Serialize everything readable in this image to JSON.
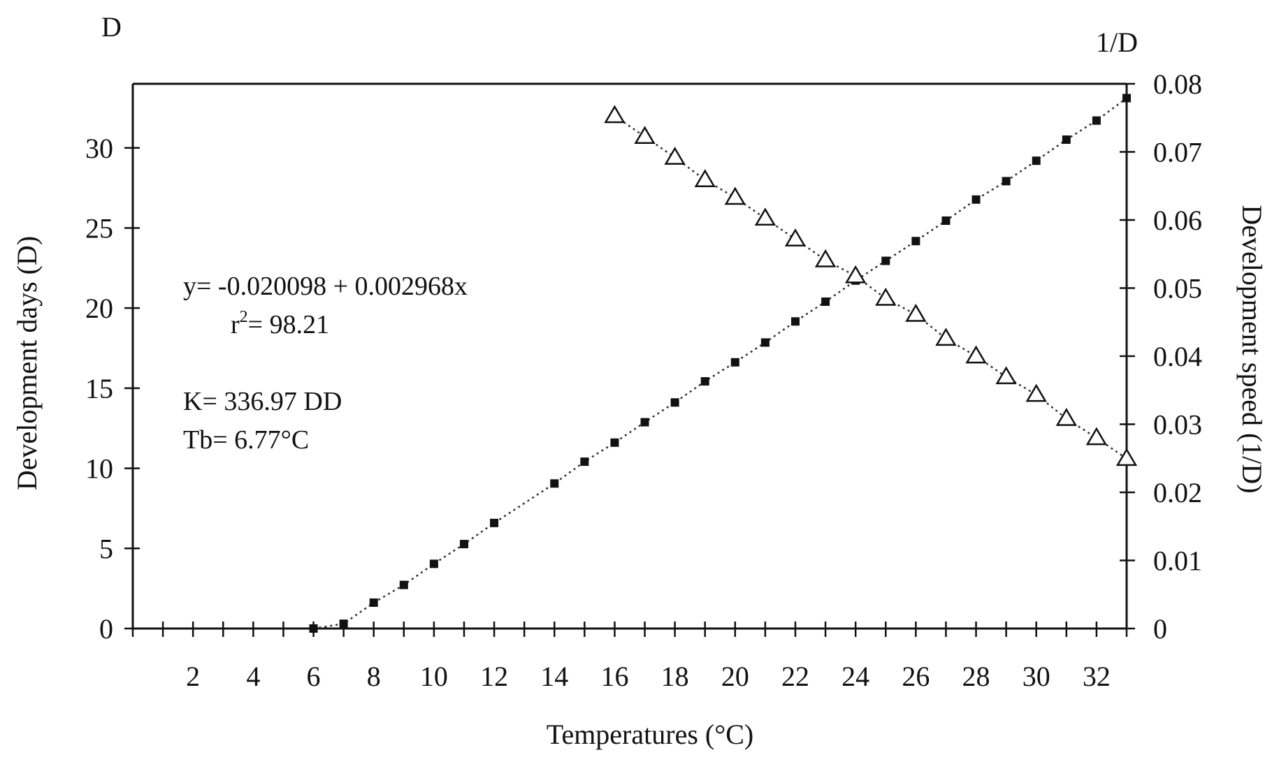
{
  "chart_data": {
    "type": "scatter",
    "title": "",
    "left_axis_symbol": "D",
    "right_axis_symbol": "1/D",
    "xlabel": "Temperatures (°C)",
    "ylabel_left": "Development days (D)",
    "ylabel_right": "Development speed (1/D)",
    "xlim": [
      0,
      33
    ],
    "ylim_left": [
      0,
      34
    ],
    "ylim_right": [
      0,
      0.08
    ],
    "x_tick_labels": [
      "2",
      "4",
      "6",
      "8",
      "10",
      "12",
      "14",
      "16",
      "18",
      "20",
      "22",
      "24",
      "26",
      "28",
      "30",
      "32"
    ],
    "y_left_tick_labels": [
      "0",
      "5",
      "10",
      "15",
      "20",
      "25",
      "30"
    ],
    "y_right_tick_labels": [
      "0",
      "0.01",
      "0.02",
      "0.03",
      "0.04",
      "0.05",
      "0.06",
      "0.07",
      "0.08"
    ],
    "grid": false,
    "series": [
      {
        "axis": "right",
        "marker": "square",
        "x": [
          6,
          7,
          8,
          9,
          10,
          11,
          12,
          14,
          15,
          16,
          17,
          18,
          19,
          20,
          21,
          22,
          23,
          24,
          25,
          26,
          27,
          28,
          29,
          30,
          31,
          32,
          33
        ],
        "y": [
          0,
          0.0007,
          0.0038,
          0.0064,
          0.0095,
          0.0124,
          0.0155,
          0.0213,
          0.0245,
          0.0273,
          0.0303,
          0.0332,
          0.0363,
          0.0391,
          0.042,
          0.0451,
          0.048,
          0.0511,
          0.054,
          0.0569,
          0.0599,
          0.063,
          0.0657,
          0.0687,
          0.0718,
          0.0746,
          0.0779
        ]
      },
      {
        "axis": "left",
        "marker": "triangle",
        "x": [
          16,
          17,
          18,
          19,
          20,
          21,
          22,
          23,
          24,
          25,
          26,
          27,
          28,
          29,
          30,
          31,
          32,
          33
        ],
        "y": [
          32,
          30.7,
          29.4,
          28.0,
          26.9,
          25.6,
          24.3,
          23.0,
          22.0,
          20.6,
          19.6,
          18.1,
          17.0,
          15.7,
          14.6,
          13.1,
          11.9,
          10.6
        ]
      }
    ],
    "annotations": {
      "equation": "y= -0.020098 + 0.002968x",
      "r_squared_prefix": "r",
      "r_squared_exp": "2",
      "r_squared_value": "= 98.21",
      "k_value": "K= 336.97 DD",
      "tb_value": "Tb= 6.77°C"
    }
  }
}
